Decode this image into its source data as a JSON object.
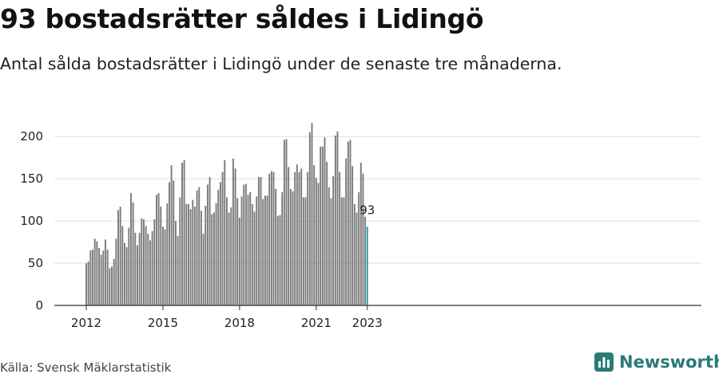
{
  "header": {
    "title": "93 bostadsrätter såldes i Lidingö",
    "subtitle": "Antal sålda bostadsrätter i Lidingö under de senaste tre månaderna."
  },
  "footer": {
    "source": "Källa: Svensk Mäklarstatistik",
    "brand": "Newsworthy",
    "brand_icon": "newsworthy-logo-icon"
  },
  "colors": {
    "bar": "#7a7a7a",
    "highlight": "#1a9bb0",
    "grid": "#dddddd",
    "axis": "#333333",
    "brand": "#2a7a78"
  },
  "chart_data": {
    "type": "bar",
    "title": "93 bostadsrätter såldes i Lidingö",
    "xlabel": "",
    "ylabel": "",
    "ylim": [
      0,
      220
    ],
    "yticks": [
      0,
      50,
      100,
      150,
      200
    ],
    "xticks": [
      "2012",
      "2015",
      "2018",
      "2021",
      "2023"
    ],
    "grid": true,
    "x_start": "2012-01",
    "x_end": "2023-01",
    "highlight_label": "93",
    "values": [
      50,
      52,
      65,
      66,
      79,
      76,
      68,
      60,
      65,
      78,
      66,
      44,
      46,
      55,
      79,
      113,
      117,
      94,
      74,
      69,
      92,
      133,
      122,
      86,
      71,
      86,
      103,
      102,
      94,
      85,
      77,
      88,
      102,
      131,
      133,
      117,
      93,
      90,
      121,
      146,
      166,
      148,
      100,
      82,
      128,
      169,
      172,
      120,
      120,
      114,
      125,
      117,
      136,
      140,
      112,
      85,
      118,
      143,
      152,
      108,
      110,
      121,
      137,
      146,
      158,
      172,
      128,
      110,
      116,
      174,
      162,
      127,
      104,
      129,
      143,
      144,
      131,
      134,
      120,
      111,
      129,
      152,
      152,
      126,
      130,
      130,
      156,
      159,
      158,
      138,
      106,
      107,
      134,
      196,
      197,
      164,
      138,
      135,
      158,
      167,
      158,
      162,
      128,
      128,
      158,
      205,
      216,
      166,
      151,
      145,
      188,
      188,
      199,
      170,
      140,
      127,
      153,
      201,
      206,
      158,
      128,
      128,
      174,
      194,
      196,
      165,
      120,
      110,
      134,
      169,
      156,
      105,
      93
    ]
  }
}
